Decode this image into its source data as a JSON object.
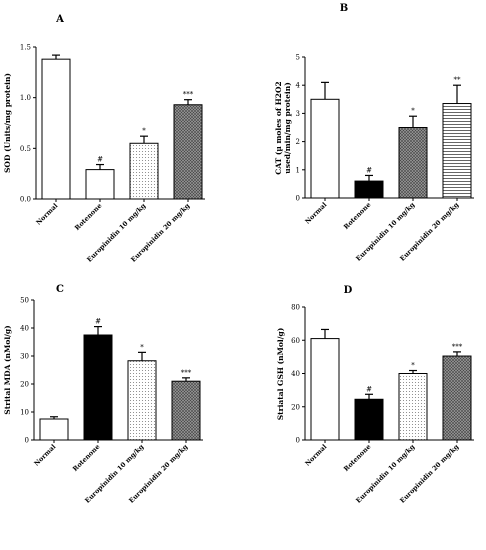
{
  "chart_data": [
    {
      "type": "bar",
      "panel": "A",
      "title": "",
      "ylabel": "SOD (Units/mg protein)",
      "xlabel": "",
      "categories": [
        "Normal",
        "Rotenone",
        "Europinidin 10 mg/kg",
        "Europinidin 20 mg/kg"
      ],
      "values": [
        1.38,
        0.29,
        0.55,
        0.93
      ],
      "errors": [
        0.04,
        0.05,
        0.07,
        0.05
      ],
      "significance": [
        "",
        "#",
        "*",
        "***"
      ],
      "patterns": [
        "white",
        "white",
        "dots",
        "crosshatch"
      ],
      "ylim": [
        0,
        1.5
      ],
      "yticks": [
        0.0,
        0.5,
        1.0,
        1.5
      ],
      "ytick_labels": [
        "0.0",
        "0.5",
        "1.0",
        "1.5"
      ],
      "grid": false
    },
    {
      "type": "bar",
      "panel": "B",
      "title": "",
      "ylabel": "CAT (µ moles of H2O2 used/min/mg protein)",
      "ylabel_lines": [
        "CAT (µ moles of H2O2",
        "used/min/mg protein)"
      ],
      "xlabel": "",
      "categories": [
        "Normal",
        "Rotenone",
        "Europinidin 10 mg/kg",
        "Europinidin 20 mg/kg"
      ],
      "values": [
        3.5,
        0.6,
        2.5,
        3.35
      ],
      "errors": [
        0.6,
        0.2,
        0.4,
        0.65
      ],
      "significance": [
        "",
        "#",
        "*",
        "**"
      ],
      "patterns": [
        "white",
        "black",
        "crosshatch",
        "hlines"
      ],
      "ylim": [
        0,
        5
      ],
      "yticks": [
        0,
        1,
        2,
        3,
        4,
        5
      ],
      "ytick_labels": [
        "0",
        "1",
        "2",
        "3",
        "4",
        "5"
      ],
      "grid": false
    },
    {
      "type": "bar",
      "panel": "C",
      "title": "",
      "ylabel": "Strital MDA (nMol/g)",
      "xlabel": "",
      "categories": [
        "Normal",
        "Rotenone",
        "Europinidin 10 mg/kg",
        "Europinidin 20 mg/kg"
      ],
      "values": [
        7.5,
        37.5,
        28.3,
        21.0
      ],
      "errors": [
        0.8,
        3.0,
        3.0,
        1.2
      ],
      "significance": [
        "",
        "#",
        "*",
        "***"
      ],
      "patterns": [
        "white",
        "black",
        "dots",
        "crosshatch"
      ],
      "ylim": [
        0,
        50
      ],
      "yticks": [
        0,
        10,
        20,
        30,
        40,
        50
      ],
      "ytick_labels": [
        "0",
        "10",
        "20",
        "30",
        "40",
        "50"
      ],
      "grid": false
    },
    {
      "type": "bar",
      "panel": "D",
      "title": "",
      "ylabel": "Striatal GSH (nMol/g)",
      "xlabel": "",
      "categories": [
        "Normal",
        "Rotenone",
        "Europinidin 10 mg/kg",
        "Europinidin 20 mg/kg"
      ],
      "values": [
        61,
        24.5,
        40,
        50.5
      ],
      "errors": [
        5.5,
        3.0,
        1.8,
        2.5
      ],
      "significance": [
        "",
        "#",
        "*",
        "***"
      ],
      "patterns": [
        "white",
        "black",
        "dots",
        "crosshatch"
      ],
      "ylim": [
        0,
        80
      ],
      "yticks": [
        0,
        20,
        40,
        60,
        80
      ],
      "ytick_labels": [
        "0",
        "20",
        "40",
        "60",
        "80"
      ],
      "grid": false
    }
  ]
}
